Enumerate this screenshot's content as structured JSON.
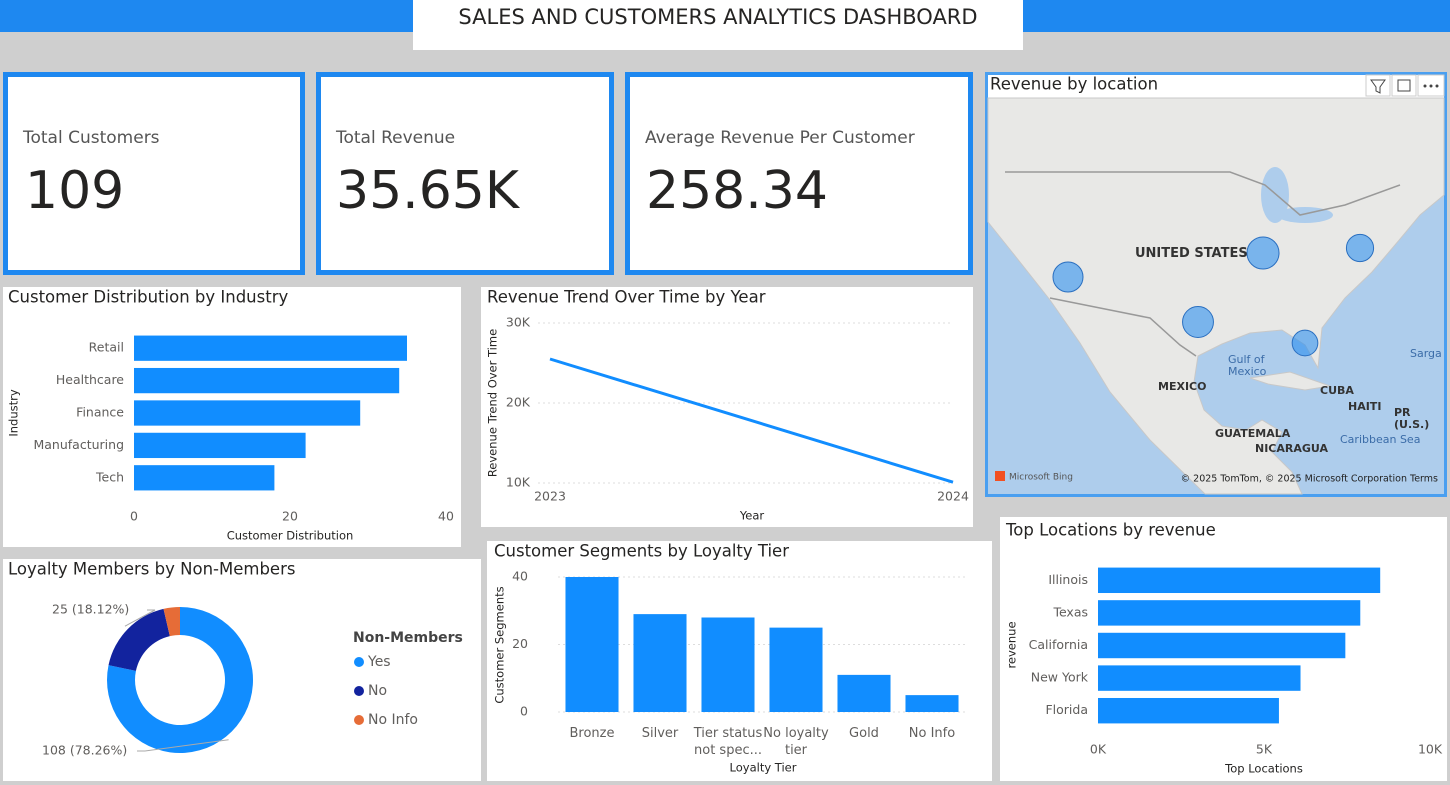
{
  "title": "SALES AND CUSTOMERS ANALYTICS DASHBOARD",
  "kpis": [
    {
      "label": "Total Customers",
      "value": "109"
    },
    {
      "label": "Total Revenue",
      "value": "35.65K"
    },
    {
      "label": "Average Revenue Per Customer",
      "value": "258.34"
    }
  ],
  "map": {
    "title": "Revenue by location",
    "labels": [
      "UNITED STATES",
      "MEXICO",
      "Gulf of Mexico",
      "CUBA",
      "HAITI",
      "PR (U.S.)",
      "GUATEMALA",
      "NICARAGUA",
      "Caribbean Sea",
      "Sarga"
    ],
    "credits": [
      "Microsoft Bing",
      "© 2025 TomTom, © 2025 Microsoft Corporation Terms"
    ]
  },
  "chart_data": [
    {
      "type": "bar",
      "orientation": "horizontal",
      "title": "Customer Distribution by Industry",
      "categories": [
        "Retail",
        "Healthcare",
        "Finance",
        "Manufacturing",
        "Tech"
      ],
      "values": [
        35,
        34,
        29,
        22,
        18
      ],
      "color": "#118dff",
      "xlim": [
        0,
        40
      ],
      "xticks": [
        0,
        20,
        40
      ],
      "grid": false,
      "x_label": "Customer Distribution",
      "y_label": "Industry"
    },
    {
      "type": "line",
      "title": "Revenue Trend Over Time by Year",
      "x": [
        2023,
        2024
      ],
      "values": [
        25500,
        10100
      ],
      "color": "#118dff",
      "xlim": [
        2023,
        2024
      ],
      "xticks": [
        2023,
        2024
      ],
      "ylim": [
        10000,
        30000
      ],
      "yticks": [
        {
          "value": 10000,
          "label": "10K"
        },
        {
          "value": 20000,
          "label": "20K"
        },
        {
          "value": 30000,
          "label": "30K"
        }
      ],
      "grid": true,
      "x_label": "Year",
      "y_label": "Revenue Trend Over Time"
    },
    {
      "type": "pie",
      "hole": true,
      "title": "Loyalty Members by Non-Members",
      "categories": [
        "Yes",
        "No",
        "No Info"
      ],
      "values": [
        108,
        25,
        5
      ],
      "value_labels": [
        "108 (78.26%)",
        "25 (18.12%)",
        null
      ],
      "colors": [
        "#118dff",
        "#12239e",
        "#e66c37"
      ],
      "legend_title": "Non-Members",
      "legend": "right"
    },
    {
      "type": "bar",
      "orientation": "vertical",
      "title": "Customer Segments by Loyalty Tier",
      "categories": [
        "Bronze",
        "Silver",
        "Tier status not spec...",
        "No loyalty tier",
        "Gold",
        "No Info"
      ],
      "values": [
        40,
        29,
        28,
        25,
        11,
        5
      ],
      "color": "#118dff",
      "ylim": [
        0,
        40
      ],
      "yticks": [
        0,
        20,
        40
      ],
      "grid": true,
      "x_label": "Loyalty Tier",
      "y_label": "Customer Segments"
    },
    {
      "type": "bar",
      "orientation": "horizontal",
      "title": "Top Locations by revenue",
      "categories": [
        "Illinois",
        "Texas",
        "California",
        "New York",
        "Florida"
      ],
      "values": [
        8500,
        7900,
        7450,
        6100,
        5450
      ],
      "color": "#118dff",
      "xlim": [
        0,
        10000
      ],
      "xticks": [
        {
          "value": 0,
          "label": "0K"
        },
        {
          "value": 5000,
          "label": "5K"
        },
        {
          "value": 10000,
          "label": "10K"
        }
      ],
      "grid": false,
      "x_label": "Top Locations",
      "y_label": "revenue"
    }
  ]
}
